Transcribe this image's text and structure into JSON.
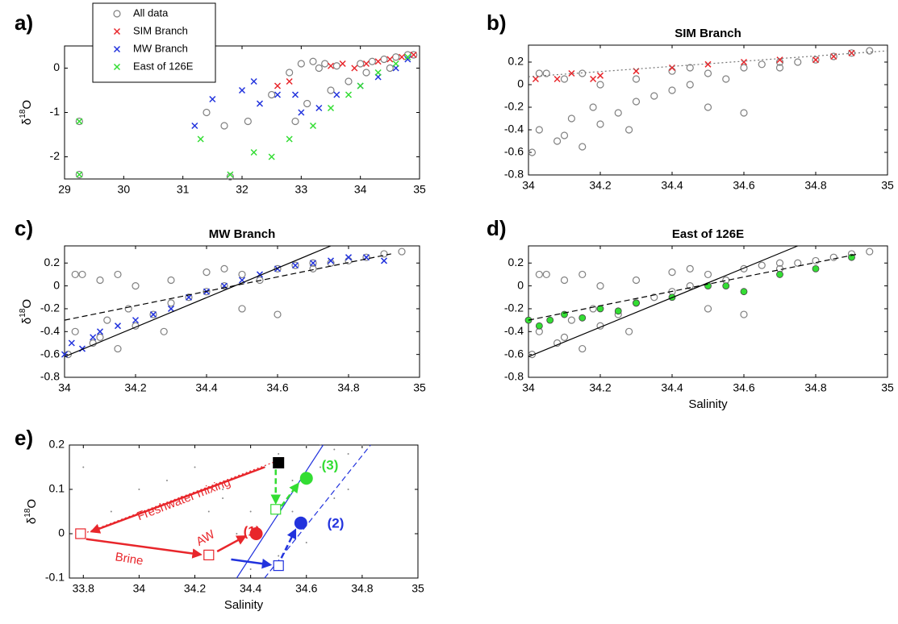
{
  "chart_data": [
    {
      "type": "scatter",
      "label": "a)",
      "ylabel": [
        "δ",
        "18",
        "O"
      ],
      "xlim": [
        29,
        35
      ],
      "ylim": [
        -2.5,
        0.5
      ],
      "xticks": [
        29,
        30,
        31,
        32,
        33,
        34,
        35
      ],
      "yticks": [
        -2,
        -1,
        0
      ],
      "legend": "upper left",
      "series": [
        {
          "name": "All data",
          "color": "#808080",
          "marker": "o",
          "x": [
            29.25,
            29.25,
            31.4,
            31.7,
            31.8,
            32.1,
            32.5,
            32.8,
            33.0,
            33.2,
            33.4,
            33.6,
            33.8,
            34.0,
            34.2,
            34.4,
            34.6,
            34.8,
            34.9,
            33.1,
            33.5,
            34.1,
            34.5,
            32.9,
            33.3
          ],
          "values": [
            -1.2,
            -2.4,
            -1.0,
            -1.3,
            -2.45,
            -1.2,
            -0.6,
            -0.1,
            0.1,
            0.15,
            0.1,
            0.05,
            -0.3,
            0.1,
            0.15,
            0.2,
            0.25,
            0.3,
            0.3,
            -0.8,
            -0.5,
            -0.1,
            0.0,
            -1.2,
            0.0
          ]
        },
        {
          "name": "SIM Branch",
          "color": "#e8262b",
          "marker": "x",
          "x": [
            32.6,
            32.8,
            33.5,
            33.7,
            33.9,
            34.1,
            34.3,
            34.5,
            34.7,
            34.9
          ],
          "values": [
            -0.4,
            -0.3,
            0.05,
            0.1,
            0.0,
            0.1,
            0.15,
            0.2,
            0.25,
            0.3
          ]
        },
        {
          "name": "MW Branch",
          "color": "#2233dd",
          "marker": "x",
          "x": [
            31.2,
            31.5,
            32.0,
            32.3,
            32.6,
            33.0,
            33.3,
            33.6,
            34.0,
            34.3,
            34.6,
            34.8,
            32.2,
            32.9
          ],
          "values": [
            -1.3,
            -0.7,
            -0.5,
            -0.8,
            -0.6,
            -1.0,
            -0.9,
            -0.6,
            -0.4,
            -0.2,
            0.0,
            0.2,
            -0.3,
            -0.6
          ]
        },
        {
          "name": "East of 126E",
          "color": "#33dd33",
          "marker": "x",
          "x": [
            29.25,
            29.25,
            31.3,
            31.8,
            32.2,
            32.5,
            32.8,
            33.2,
            33.5,
            33.8,
            34.0,
            34.3,
            34.6,
            34.8
          ],
          "values": [
            -1.2,
            -2.4,
            -1.6,
            -2.4,
            -1.9,
            -2.0,
            -1.6,
            -1.3,
            -0.9,
            -0.6,
            -0.4,
            -0.1,
            0.1,
            0.25
          ]
        }
      ]
    },
    {
      "type": "scatter",
      "label": "b)",
      "title": "SIM Branch",
      "xlim": [
        34,
        35
      ],
      "ylim": [
        -0.8,
        0.35
      ],
      "xticks": [
        34,
        34.2,
        34.4,
        34.6,
        34.8,
        35
      ],
      "yticks": [
        -0.8,
        -0.6,
        -0.4,
        -0.2,
        0,
        0.2
      ],
      "series": [
        {
          "color": "#808080",
          "marker": "o",
          "x": [
            34.01,
            34.03,
            34.05,
            34.08,
            34.1,
            34.12,
            34.15,
            34.18,
            34.2,
            34.25,
            34.3,
            34.35,
            34.4,
            34.45,
            34.5,
            34.55,
            34.6,
            34.65,
            34.7,
            34.75,
            34.8,
            34.85,
            34.9,
            34.95,
            34.1,
            34.2,
            34.3,
            34.4,
            34.5,
            34.6,
            34.7,
            34.03,
            34.15,
            34.28,
            34.45
          ],
          "values": [
            -0.6,
            -0.4,
            0.1,
            -0.5,
            0.05,
            -0.3,
            0.1,
            -0.2,
            0.0,
            -0.25,
            -0.15,
            -0.1,
            -0.05,
            0.0,
            0.1,
            0.05,
            0.15,
            0.18,
            0.2,
            0.2,
            0.22,
            0.25,
            0.28,
            0.3,
            -0.45,
            -0.35,
            0.05,
            0.12,
            -0.2,
            -0.25,
            0.15,
            0.1,
            -0.55,
            -0.4,
            0.15
          ]
        },
        {
          "color": "#e8262b",
          "marker": "x",
          "x": [
            34.02,
            34.08,
            34.12,
            34.18,
            34.2,
            34.3,
            34.4,
            34.5,
            34.6,
            34.7,
            34.8,
            34.85,
            34.9
          ],
          "values": [
            0.05,
            0.05,
            0.1,
            0.05,
            0.08,
            0.12,
            0.15,
            0.18,
            0.2,
            0.22,
            0.22,
            0.25,
            0.28
          ]
        }
      ],
      "lines": [
        {
          "x": [
            34,
            35
          ],
          "y": [
            0.07,
            0.3
          ],
          "color": "#777777",
          "style": "dotted"
        }
      ]
    },
    {
      "type": "scatter",
      "label": "c)",
      "title": "MW Branch",
      "ylabel": [
        "δ",
        "18",
        "O"
      ],
      "xlim": [
        34,
        35
      ],
      "ylim": [
        -0.8,
        0.35
      ],
      "xticks": [
        34,
        34.2,
        34.4,
        34.6,
        34.8,
        35
      ],
      "yticks": [
        -0.8,
        -0.6,
        -0.4,
        -0.2,
        0,
        0.2
      ],
      "series": [
        {
          "color": "#808080",
          "marker": "o",
          "x": [
            34.01,
            34.03,
            34.05,
            34.08,
            34.1,
            34.12,
            34.15,
            34.18,
            34.2,
            34.25,
            34.3,
            34.35,
            34.4,
            34.45,
            34.5,
            34.55,
            34.6,
            34.65,
            34.7,
            34.75,
            34.8,
            34.85,
            34.9,
            34.95,
            34.1,
            34.2,
            34.3,
            34.4,
            34.5,
            34.6,
            34.7,
            34.03,
            34.15,
            34.28,
            34.45
          ],
          "values": [
            -0.6,
            -0.4,
            0.1,
            -0.5,
            0.05,
            -0.3,
            0.1,
            -0.2,
            0.0,
            -0.25,
            -0.15,
            -0.1,
            -0.05,
            0.0,
            0.1,
            0.05,
            0.15,
            0.18,
            0.2,
            0.2,
            0.22,
            0.25,
            0.28,
            0.3,
            -0.45,
            -0.35,
            0.05,
            0.12,
            -0.2,
            -0.25,
            0.15,
            0.1,
            -0.55,
            -0.4,
            0.15
          ]
        },
        {
          "color": "#2233dd",
          "marker": "x",
          "x": [
            34.0,
            34.02,
            34.05,
            34.08,
            34.1,
            34.15,
            34.2,
            34.25,
            34.3,
            34.35,
            34.4,
            34.45,
            34.5,
            34.55,
            34.6,
            34.65,
            34.7,
            34.75,
            34.8,
            34.85,
            34.9
          ],
          "values": [
            -0.6,
            -0.5,
            -0.55,
            -0.45,
            -0.4,
            -0.35,
            -0.3,
            -0.25,
            -0.2,
            -0.1,
            -0.05,
            0.0,
            0.05,
            0.1,
            0.15,
            0.18,
            0.2,
            0.22,
            0.25,
            0.25,
            0.22
          ]
        }
      ],
      "lines": [
        {
          "x": [
            34,
            34.75
          ],
          "y": [
            -0.62,
            0.35
          ],
          "color": "#000000",
          "style": "solid"
        },
        {
          "x": [
            34,
            34.92
          ],
          "y": [
            -0.3,
            0.28
          ],
          "color": "#000000",
          "style": "dashed"
        }
      ]
    },
    {
      "type": "scatter",
      "label": "d)",
      "title": "East of 126E",
      "xlabel": "Salinity",
      "xlim": [
        34,
        35
      ],
      "ylim": [
        -0.8,
        0.35
      ],
      "xticks": [
        34,
        34.2,
        34.4,
        34.6,
        34.8,
        35
      ],
      "yticks": [
        -0.8,
        -0.6,
        -0.4,
        -0.2,
        0,
        0.2
      ],
      "series": [
        {
          "color": "#808080",
          "marker": "o",
          "x": [
            34.01,
            34.03,
            34.05,
            34.08,
            34.1,
            34.12,
            34.15,
            34.18,
            34.2,
            34.25,
            34.3,
            34.35,
            34.4,
            34.45,
            34.5,
            34.55,
            34.6,
            34.65,
            34.7,
            34.75,
            34.8,
            34.85,
            34.9,
            34.95,
            34.1,
            34.2,
            34.3,
            34.4,
            34.5,
            34.6,
            34.7,
            34.03,
            34.15,
            34.28,
            34.45
          ],
          "values": [
            -0.6,
            -0.4,
            0.1,
            -0.5,
            0.05,
            -0.3,
            0.1,
            -0.2,
            0.0,
            -0.25,
            -0.15,
            -0.1,
            -0.05,
            0.0,
            0.1,
            0.05,
            0.15,
            0.18,
            0.2,
            0.2,
            0.22,
            0.25,
            0.28,
            0.3,
            -0.45,
            -0.35,
            0.05,
            0.12,
            -0.2,
            -0.25,
            0.15,
            0.1,
            -0.55,
            -0.4,
            0.15
          ]
        },
        {
          "color": "#33dd33",
          "marker": "o-filled",
          "x": [
            34.0,
            34.03,
            34.06,
            34.1,
            34.15,
            34.2,
            34.25,
            34.3,
            34.4,
            34.5,
            34.55,
            34.6,
            34.7,
            34.8,
            34.9
          ],
          "values": [
            -0.3,
            -0.35,
            -0.3,
            -0.25,
            -0.28,
            -0.2,
            -0.22,
            -0.15,
            -0.1,
            0.0,
            0.0,
            -0.05,
            0.1,
            0.15,
            0.25
          ]
        }
      ],
      "lines": [
        {
          "x": [
            34,
            34.75
          ],
          "y": [
            -0.62,
            0.35
          ],
          "color": "#000000",
          "style": "solid"
        },
        {
          "x": [
            34,
            34.92
          ],
          "y": [
            -0.3,
            0.28
          ],
          "color": "#000000",
          "style": "dashed"
        }
      ]
    },
    {
      "type": "scatter",
      "label": "e)",
      "ylabel": [
        "δ",
        "18",
        "O"
      ],
      "xlabel": "Salinity",
      "xlim": [
        33.75,
        35
      ],
      "ylim": [
        -0.1,
        0.2
      ],
      "xticks": [
        33.8,
        34,
        34.2,
        34.4,
        34.6,
        34.8,
        35
      ],
      "yticks": [
        -0.1,
        0,
        0.1,
        0.2
      ],
      "series": [
        {
          "color": "#888888",
          "marker": "dot",
          "x": [
            33.8,
            33.9,
            34.0,
            34.1,
            34.2,
            34.25,
            34.3,
            34.35,
            34.4,
            34.45,
            34.5,
            34.55,
            34.6,
            34.65,
            34.7,
            34.75,
            34.8,
            34.5,
            34.6,
            34.7,
            34.4,
            34.3,
            34.55,
            34.65,
            34.75
          ],
          "values": [
            0.15,
            0.05,
            0.1,
            0.12,
            0.15,
            0.05,
            0.1,
            0.0,
            0.05,
            0.15,
            0.18,
            0.12,
            0.2,
            0.2,
            0.19,
            0.18,
            0.2,
            -0.05,
            -0.02,
            0.08,
            -0.08,
            0.08,
            0.05,
            0.15,
            0.1
          ]
        }
      ],
      "lines": [
        {
          "x": [
            34.35,
            34.66
          ],
          "y": [
            -0.1,
            0.2
          ],
          "color": "#2233dd",
          "style": "solid"
        },
        {
          "x": [
            34.45,
            34.83
          ],
          "y": [
            -0.1,
            0.2
          ],
          "color": "#2233dd",
          "style": "dashed"
        },
        {
          "x": [
            33.8,
            34.52
          ],
          "y": [
            0,
            0.17
          ],
          "color": "#e8262b",
          "style": "dotted"
        }
      ],
      "arrows": [
        {
          "x": [
            34.45,
            33.83
          ],
          "y": [
            0.15,
            0.005
          ],
          "color": "#e8262b",
          "style": "solid"
        },
        {
          "x": [
            33.81,
            34.22
          ],
          "y": [
            -0.012,
            -0.047
          ],
          "color": "#e8262b",
          "style": "solid"
        },
        {
          "x": [
            34.28,
            34.38
          ],
          "y": [
            -0.04,
            -0.006
          ],
          "color": "#e8262b",
          "style": "solid"
        },
        {
          "x": [
            34.33,
            34.47
          ],
          "y": [
            -0.058,
            -0.07
          ],
          "color": "#2233dd",
          "style": "solid"
        },
        {
          "x": [
            34.51,
            34.56
          ],
          "y": [
            -0.055,
            0.008
          ],
          "color": "#2233dd",
          "style": "dashed"
        },
        {
          "x": [
            34.49,
            34.49
          ],
          "y": [
            0.145,
            0.07
          ],
          "color": "#33dd33",
          "style": "dashed"
        },
        {
          "x": [
            34.51,
            34.57
          ],
          "y": [
            0.062,
            0.112
          ],
          "color": "#33dd33",
          "style": "dashed"
        }
      ],
      "points": [
        {
          "x": 33.79,
          "y": 0.0,
          "color": "#e8262b",
          "marker": "square-open"
        },
        {
          "x": 34.25,
          "y": -0.048,
          "color": "#e8262b",
          "marker": "square-open"
        },
        {
          "x": 34.5,
          "y": -0.072,
          "color": "#2233dd",
          "marker": "square-open"
        },
        {
          "x": 34.49,
          "y": 0.055,
          "color": "#33dd33",
          "marker": "square-open"
        },
        {
          "x": 34.5,
          "y": 0.16,
          "color": "#000000",
          "marker": "square-filled"
        },
        {
          "x": 34.42,
          "y": 0.0,
          "color": "#e8262b",
          "marker": "circle-filled"
        },
        {
          "x": 34.58,
          "y": 0.024,
          "color": "#2233dd",
          "marker": "circle-filled"
        },
        {
          "x": 34.6,
          "y": 0.125,
          "color": "#33dd33",
          "marker": "circle-filled"
        }
      ],
      "annotations": [
        {
          "text": "Freshwater mixing",
          "color": "#e8262b"
        },
        {
          "text": "Brine",
          "color": "#e8262b"
        },
        {
          "text": "AW",
          "color": "#e8262b"
        },
        {
          "text": "(1)",
          "color": "#e8262b"
        },
        {
          "text": "(2)",
          "color": "#2233dd"
        },
        {
          "text": "(3)",
          "color": "#33dd33"
        }
      ]
    }
  ]
}
